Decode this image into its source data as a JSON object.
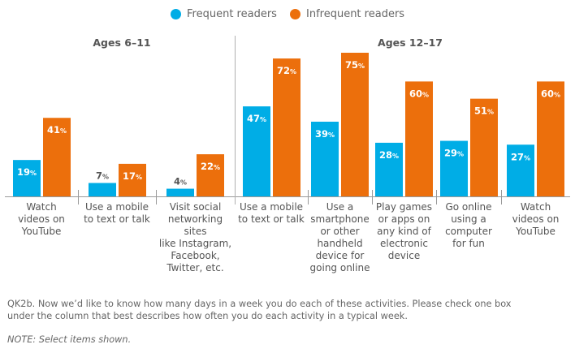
{
  "legend": {
    "frequent": {
      "label": "Frequent readers",
      "color": "#00ADE6"
    },
    "infrequent": {
      "label": "Infrequent readers",
      "color": "#EC6F0C"
    }
  },
  "chart_data": {
    "type": "bar",
    "title": "",
    "xlabel": "",
    "ylabel": "",
    "ylim": [
      0,
      100
    ],
    "unit": "%",
    "grid": false,
    "legend_position": "top-center",
    "groups": [
      {
        "name": "Ages 6–11",
        "categories": [
          "Watch videos on YouTube",
          "Use a mobile to text or talk",
          "Visit social networking sites like Instagram, Facebook, Twitter, etc."
        ],
        "series": [
          {
            "name": "Frequent readers",
            "values": [
              19,
              7,
              4
            ]
          },
          {
            "name": "Infrequent readers",
            "values": [
              41,
              17,
              22
            ]
          }
        ]
      },
      {
        "name": "Ages 12–17",
        "categories": [
          "Use a mobile to text or talk",
          "Use a smartphone or other handheld device for going online",
          "Play games or apps on any kind of electronic device",
          "Go online using a computer for fun",
          "Watch videos on YouTube"
        ],
        "series": [
          {
            "name": "Frequent readers",
            "values": [
              47,
              39,
              28,
              29,
              27
            ]
          },
          {
            "name": "Infrequent readers",
            "values": [
              72,
              75,
              60,
              51,
              60
            ]
          }
        ]
      }
    ]
  },
  "category_labels": [
    [
      "Watch",
      "videos on",
      "YouTube"
    ],
    [
      "Use a mobile",
      "to text or talk"
    ],
    [
      "Visit social",
      "networking sites",
      "like Instagram,",
      "Facebook,",
      "Twitter, etc."
    ],
    [
      "Use a mobile",
      "to text or talk"
    ],
    [
      "Use a",
      "smartphone",
      "or other",
      "handheld",
      "device for",
      "going online"
    ],
    [
      "Play games",
      "or apps on",
      "any kind of",
      "electronic",
      "device"
    ],
    [
      "Go online",
      "using a",
      "computer",
      "for fun"
    ],
    [
      "Watch",
      "videos on",
      "YouTube"
    ]
  ],
  "footer": {
    "question_line1": "QK2b. Now we’d like to know how many days in a week you do each of these activities. Please check one box",
    "question_line2": "under the column that best describes how often you do each activity in a typical week.",
    "note": "NOTE: Select items shown."
  }
}
